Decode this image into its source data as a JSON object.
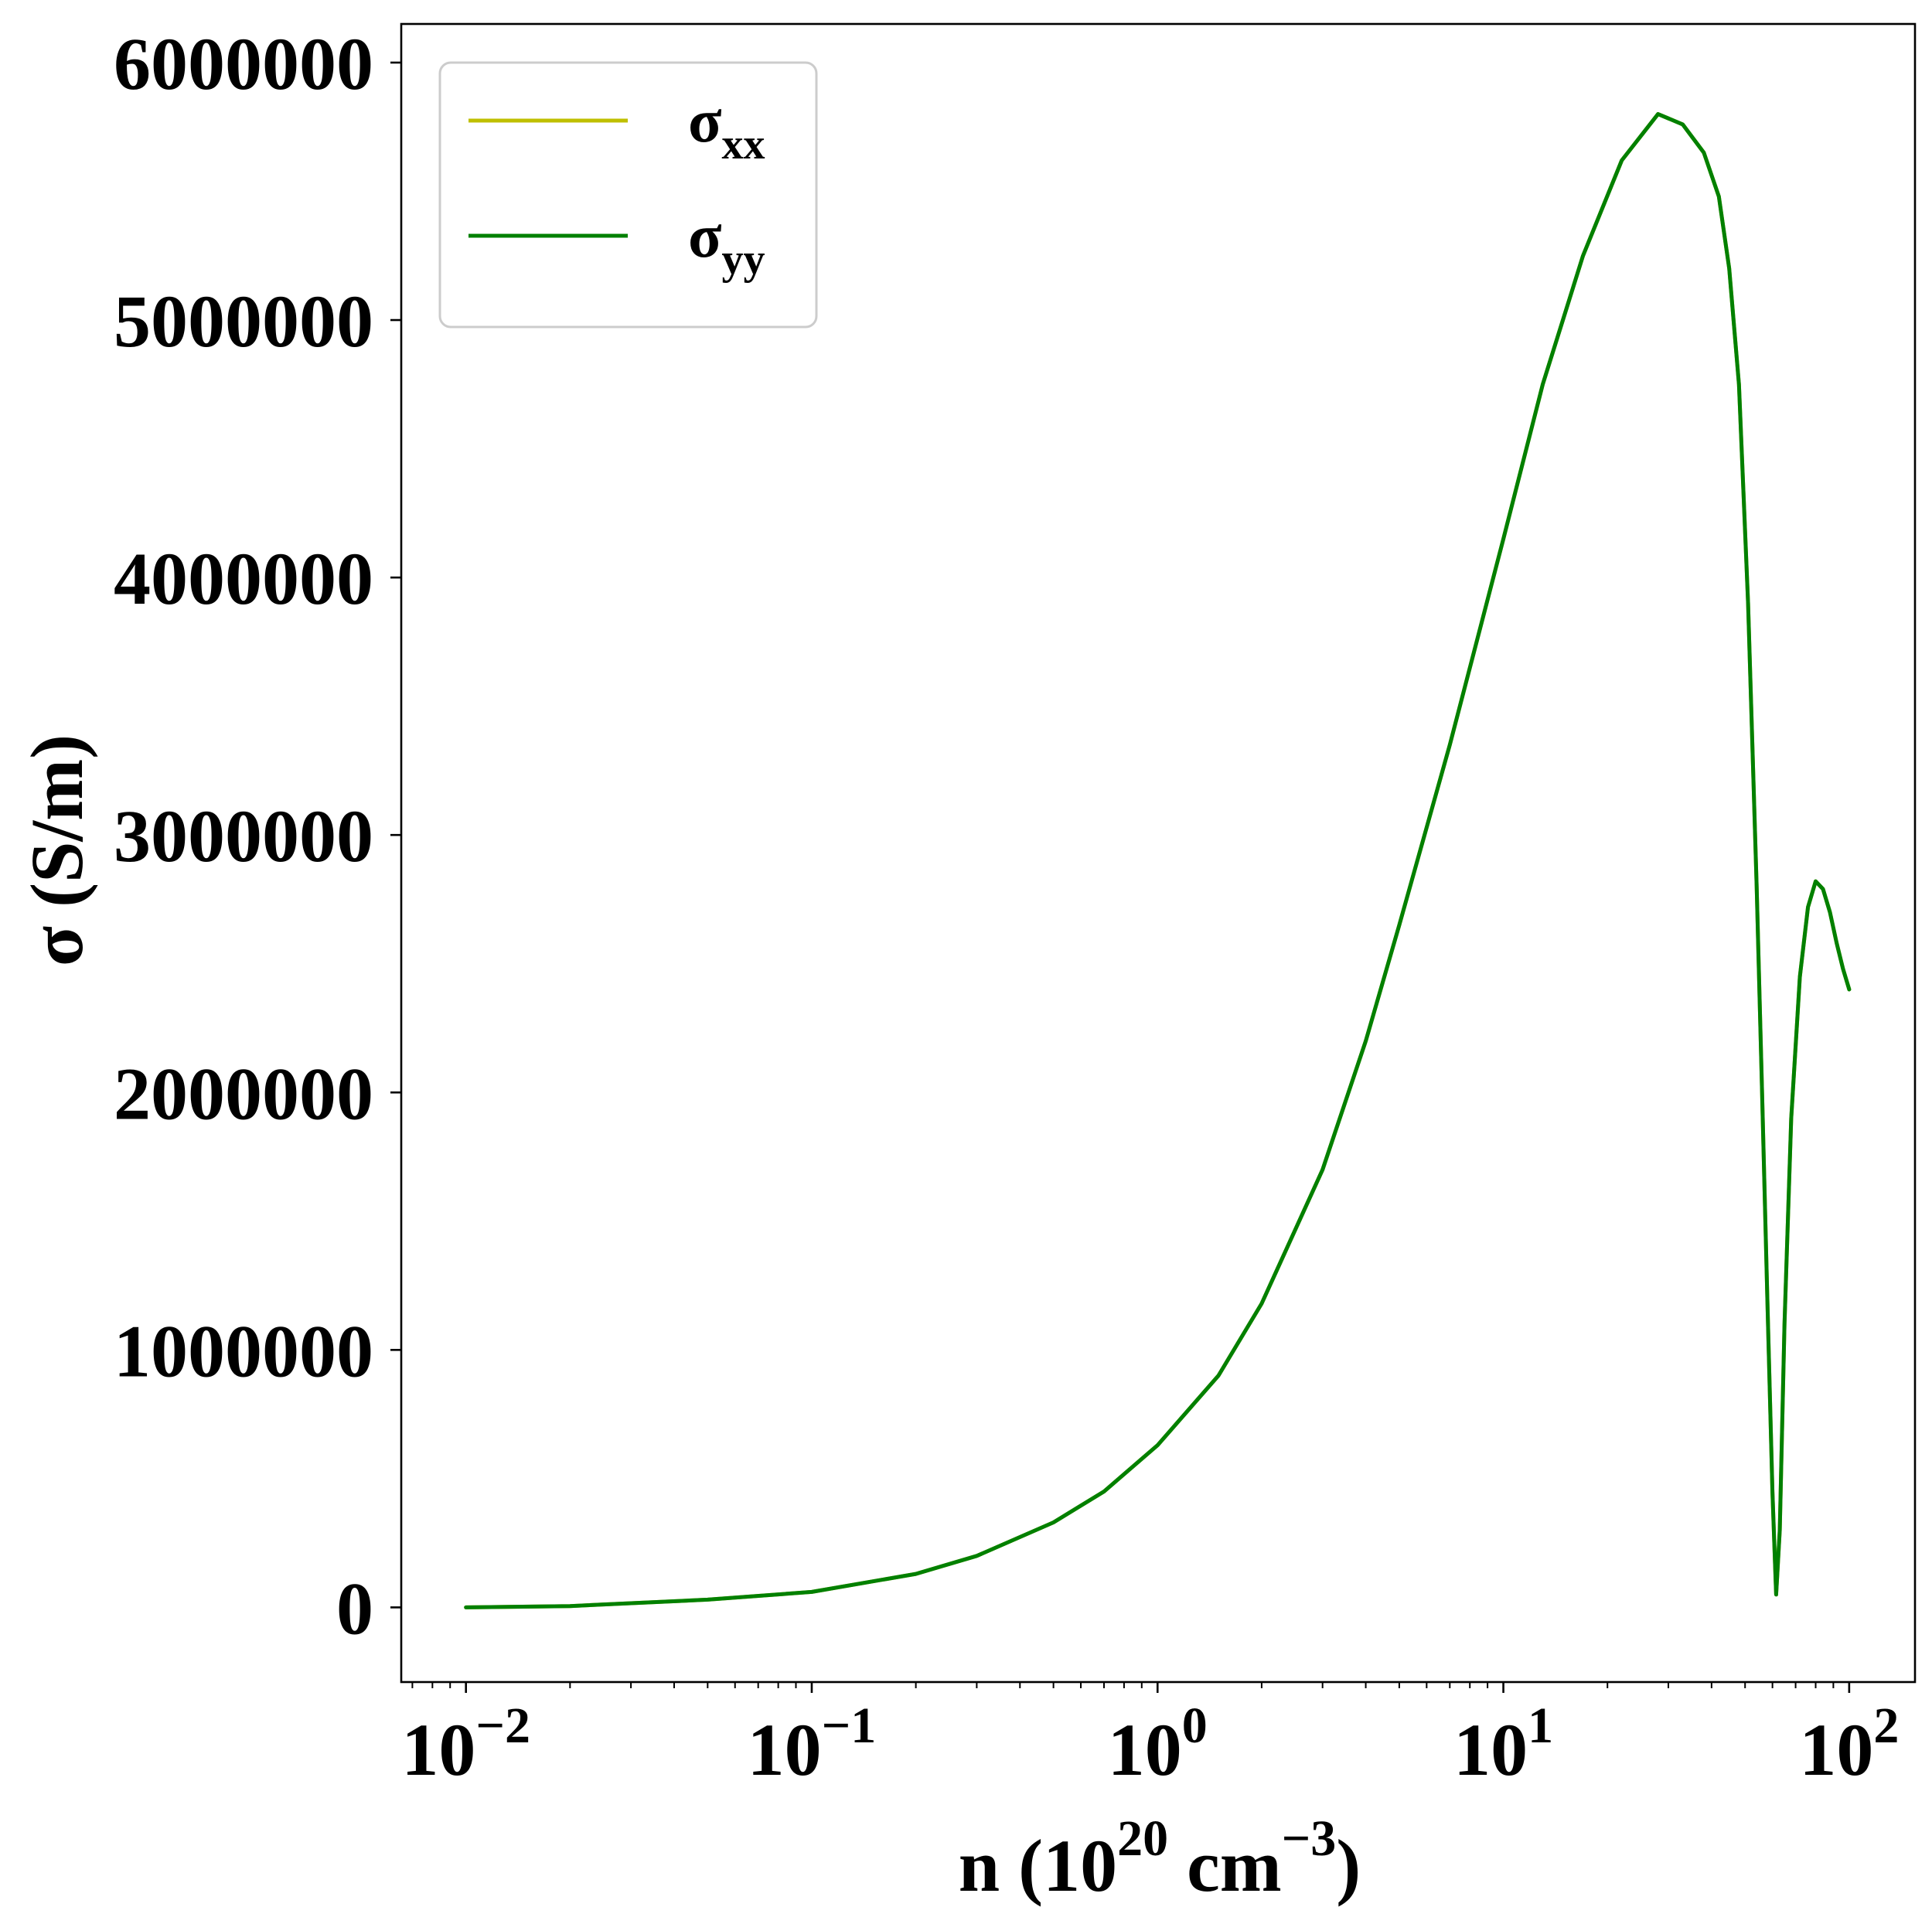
{
  "chart_data": {
    "type": "line",
    "xscale": "log",
    "xlim": [
      0.0065,
      155
    ],
    "ylim": [
      -290000,
      6150000
    ],
    "xlabel": "n (10",
    "xlabel_sup1": "20",
    "xlabel_mid": " cm",
    "xlabel_sup2": "−3",
    "xlabel_end": ")",
    "ylabel": "σ (S/m)",
    "xticks": [
      {
        "base": "10",
        "exp": "−2",
        "value": 0.01
      },
      {
        "base": "10",
        "exp": "−1",
        "value": 0.1
      },
      {
        "base": "10",
        "exp": "0",
        "value": 1
      },
      {
        "base": "10",
        "exp": "1",
        "value": 10
      },
      {
        "base": "10",
        "exp": "2",
        "value": 100
      }
    ],
    "yticks": [
      {
        "label": "0",
        "value": 0
      },
      {
        "label": "1000000",
        "value": 1000000
      },
      {
        "label": "2000000",
        "value": 2000000
      },
      {
        "label": "3000000",
        "value": 3000000
      },
      {
        "label": "4000000",
        "value": 4000000
      },
      {
        "label": "5000000",
        "value": 5000000
      },
      {
        "label": "6000000",
        "value": 6000000
      }
    ],
    "grid": false,
    "legend_position": "upper-left",
    "series": [
      {
        "name": "σ",
        "sub": "xx",
        "color": "#bfbf00",
        "x": [
          0.01,
          0.02,
          0.05,
          0.1,
          0.2,
          0.3,
          0.5,
          0.7,
          1.0,
          1.5,
          2.0,
          3.0,
          4.0,
          5.0,
          7.0,
          10.0,
          13.0,
          17.0,
          22.0,
          28.0,
          33.0,
          38.0,
          42.0,
          45.0,
          48.0,
          51.0,
          54.0,
          56.0,
          58.0,
          60.0,
          61.5,
          63.0,
          65.0,
          68.0,
          72.0,
          76.0,
          80.0,
          84.0,
          88.0,
          92.0,
          96.0,
          100.0
        ],
        "y": [
          0,
          5000,
          30000,
          60000,
          130000,
          200000,
          330000,
          450000,
          630000,
          900000,
          1180000,
          1700000,
          2200000,
          2650000,
          3350000,
          4150000,
          4750000,
          5250000,
          5620000,
          5800000,
          5760000,
          5650000,
          5480000,
          5200000,
          4750000,
          3900000,
          2800000,
          2000000,
          1200000,
          450000,
          50000,
          300000,
          1100000,
          1900000,
          2450000,
          2720000,
          2820000,
          2790000,
          2700000,
          2580000,
          2480000,
          2400000
        ]
      },
      {
        "name": "σ",
        "sub": "yy",
        "color": "#008000",
        "x": [
          0.01,
          0.02,
          0.05,
          0.1,
          0.2,
          0.3,
          0.5,
          0.7,
          1.0,
          1.5,
          2.0,
          3.0,
          4.0,
          5.0,
          7.0,
          10.0,
          13.0,
          17.0,
          22.0,
          28.0,
          33.0,
          38.0,
          42.0,
          45.0,
          48.0,
          51.0,
          54.0,
          56.0,
          58.0,
          60.0,
          61.5,
          63.0,
          65.0,
          68.0,
          72.0,
          76.0,
          80.0,
          84.0,
          88.0,
          92.0,
          96.0,
          100.0
        ],
        "y": [
          0,
          5000,
          30000,
          60000,
          130000,
          200000,
          330000,
          450000,
          630000,
          900000,
          1180000,
          1700000,
          2200000,
          2650000,
          3350000,
          4150000,
          4750000,
          5250000,
          5620000,
          5800000,
          5760000,
          5650000,
          5480000,
          5200000,
          4750000,
          3900000,
          2800000,
          2000000,
          1200000,
          450000,
          50000,
          300000,
          1100000,
          1900000,
          2450000,
          2720000,
          2820000,
          2790000,
          2700000,
          2580000,
          2480000,
          2400000
        ]
      }
    ]
  }
}
